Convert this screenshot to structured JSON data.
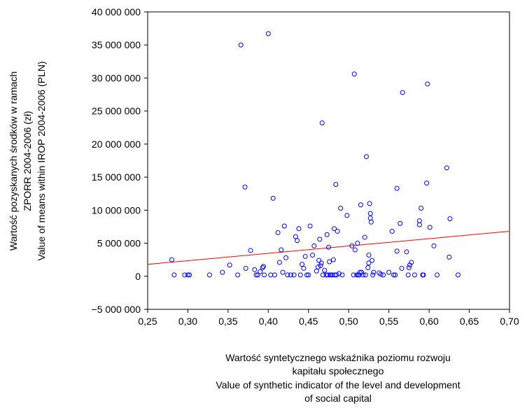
{
  "chart_data": {
    "type": "scatter",
    "title": "",
    "xlabel": [
      "Wartość syntetycznego wskaźnika poziomu rozwoju",
      "kapitału społecznego",
      "Value of synthetic indicator of the level and development",
      "of social capital"
    ],
    "ylabel": [
      "Wartość pozyskanych środków w ramach",
      "ZPORR 2004-2006 (zł)",
      "Value of means within IROP 2004-2006 (PLN)"
    ],
    "xlim": [
      0.25,
      0.7
    ],
    "ylim": [
      -5000000,
      40000000
    ],
    "x_ticks": [
      0.25,
      0.3,
      0.35,
      0.4,
      0.45,
      0.5,
      0.55,
      0.6,
      0.65,
      0.7
    ],
    "x_tick_labels": [
      "0,25",
      "0,30",
      "0,35",
      "0,40",
      "0,45",
      "0,50",
      "0,55",
      "0,60",
      "0,65",
      "0,70"
    ],
    "y_ticks": [
      -5000000,
      0,
      5000000,
      10000000,
      15000000,
      20000000,
      25000000,
      30000000,
      35000000,
      40000000
    ],
    "y_tick_labels": [
      "−5 000 000",
      "0",
      "5 000 000",
      "10 000 000",
      "15 000 000",
      "20 000 000",
      "25 000 000",
      "30 000 000",
      "35 000 000",
      "40 000 000"
    ],
    "grid": false,
    "marker_color": "#0000ff",
    "trend_color": "#ff0000",
    "trend_line": {
      "x": [
        0.25,
        0.7
      ],
      "y": [
        1800000,
        6800000
      ]
    },
    "points": [
      [
        0.28,
        2500000
      ],
      [
        0.283,
        200000
      ],
      [
        0.296,
        200000
      ],
      [
        0.3,
        200000
      ],
      [
        0.302,
        200000
      ],
      [
        0.327,
        200000
      ],
      [
        0.343,
        600000
      ],
      [
        0.352,
        1700000
      ],
      [
        0.362,
        200000
      ],
      [
        0.366,
        35000000
      ],
      [
        0.371,
        13500000
      ],
      [
        0.372,
        1200000
      ],
      [
        0.378,
        3900000
      ],
      [
        0.383,
        1000000
      ],
      [
        0.385,
        200000
      ],
      [
        0.387,
        200000
      ],
      [
        0.39,
        700000
      ],
      [
        0.393,
        1300000
      ],
      [
        0.394,
        1500000
      ],
      [
        0.395,
        200000
      ],
      [
        0.4,
        36700000
      ],
      [
        0.403,
        200000
      ],
      [
        0.406,
        11800000
      ],
      [
        0.408,
        200000
      ],
      [
        0.412,
        6600000
      ],
      [
        0.414,
        2100000
      ],
      [
        0.416,
        4000000
      ],
      [
        0.418,
        600000
      ],
      [
        0.42,
        7600000
      ],
      [
        0.422,
        2800000
      ],
      [
        0.424,
        200000
      ],
      [
        0.428,
        200000
      ],
      [
        0.432,
        200000
      ],
      [
        0.434,
        6000000
      ],
      [
        0.436,
        5400000
      ],
      [
        0.438,
        7200000
      ],
      [
        0.44,
        200000
      ],
      [
        0.442,
        1800000
      ],
      [
        0.444,
        1200000
      ],
      [
        0.446,
        3000000
      ],
      [
        0.448,
        200000
      ],
      [
        0.45,
        200000
      ],
      [
        0.452,
        7600000
      ],
      [
        0.455,
        3200000
      ],
      [
        0.457,
        4600000
      ],
      [
        0.46,
        800000
      ],
      [
        0.462,
        1400000
      ],
      [
        0.463,
        2400000
      ],
      [
        0.464,
        5600000
      ],
      [
        0.465,
        1600000
      ],
      [
        0.466,
        2000000
      ],
      [
        0.467,
        23200000
      ],
      [
        0.468,
        200000
      ],
      [
        0.47,
        900000
      ],
      [
        0.472,
        200000
      ],
      [
        0.473,
        6300000
      ],
      [
        0.474,
        200000
      ],
      [
        0.475,
        4400000
      ],
      [
        0.476,
        2200000
      ],
      [
        0.477,
        200000
      ],
      [
        0.478,
        200000
      ],
      [
        0.48,
        200000
      ],
      [
        0.481,
        2500000
      ],
      [
        0.482,
        7200000
      ],
      [
        0.483,
        200000
      ],
      [
        0.484,
        13900000
      ],
      [
        0.485,
        200000
      ],
      [
        0.486,
        6800000
      ],
      [
        0.488,
        400000
      ],
      [
        0.49,
        10300000
      ],
      [
        0.492,
        200000
      ],
      [
        0.498,
        9200000
      ],
      [
        0.504,
        4600000
      ],
      [
        0.506,
        200000
      ],
      [
        0.507,
        30600000
      ],
      [
        0.508,
        4000000
      ],
      [
        0.51,
        200000
      ],
      [
        0.511,
        5000000
      ],
      [
        0.512,
        200000
      ],
      [
        0.513,
        200000
      ],
      [
        0.514,
        600000
      ],
      [
        0.515,
        10800000
      ],
      [
        0.516,
        600000
      ],
      [
        0.518,
        200000
      ],
      [
        0.52,
        5900000
      ],
      [
        0.521,
        200000
      ],
      [
        0.522,
        18100000
      ],
      [
        0.524,
        1300000
      ],
      [
        0.525,
        2000000
      ],
      [
        0.525,
        3200000
      ],
      [
        0.526,
        11000000
      ],
      [
        0.527,
        9500000
      ],
      [
        0.527,
        8800000
      ],
      [
        0.528,
        8200000
      ],
      [
        0.529,
        2400000
      ],
      [
        0.53,
        200000
      ],
      [
        0.531,
        600000
      ],
      [
        0.538,
        500000
      ],
      [
        0.54,
        300000
      ],
      [
        0.543,
        200000
      ],
      [
        0.55,
        600000
      ],
      [
        0.554,
        6800000
      ],
      [
        0.556,
        200000
      ],
      [
        0.558,
        200000
      ],
      [
        0.56,
        13300000
      ],
      [
        0.56,
        3800000
      ],
      [
        0.564,
        8000000
      ],
      [
        0.566,
        1200000
      ],
      [
        0.567,
        27800000
      ],
      [
        0.572,
        3700000
      ],
      [
        0.574,
        200000
      ],
      [
        0.575,
        1300000
      ],
      [
        0.576,
        1700000
      ],
      [
        0.578,
        2100000
      ],
      [
        0.582,
        200000
      ],
      [
        0.588,
        7800000
      ],
      [
        0.588,
        8400000
      ],
      [
        0.59,
        10300000
      ],
      [
        0.592,
        200000
      ],
      [
        0.593,
        200000
      ],
      [
        0.597,
        14100000
      ],
      [
        0.598,
        29100000
      ],
      [
        0.601,
        7400000
      ],
      [
        0.606,
        4600000
      ],
      [
        0.61,
        200000
      ],
      [
        0.622,
        16400000
      ],
      [
        0.625,
        2900000
      ],
      [
        0.626,
        8700000
      ],
      [
        0.636,
        200000
      ]
    ]
  }
}
